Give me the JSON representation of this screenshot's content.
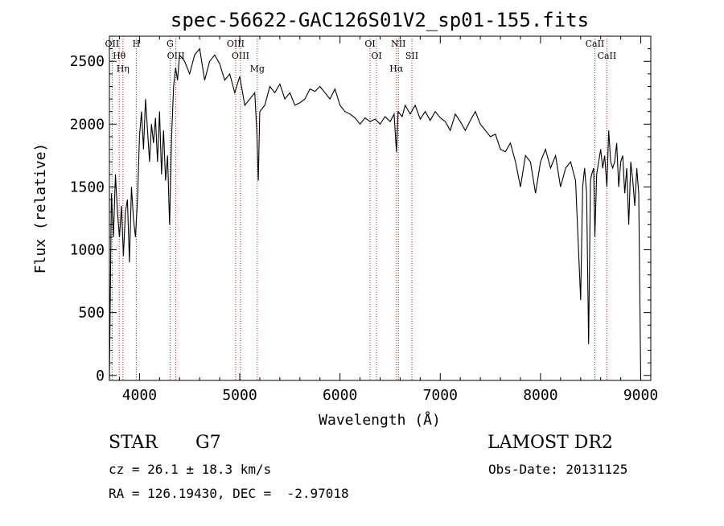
{
  "chart_data": {
    "type": "line",
    "title": "spec-56622-GAC126S01V2_sp01-155.fits",
    "xlabel": "Wavelength (Å)",
    "ylabel": "Flux (relative)",
    "xlim": [
      3700,
      9100
    ],
    "ylim": [
      -40,
      2700
    ],
    "xticks": [
      4000,
      5000,
      6000,
      7000,
      8000,
      9000
    ],
    "yticks": [
      0,
      500,
      1000,
      1500,
      2000,
      2500
    ],
    "grid": false,
    "series": [
      {
        "x": [
          3700,
          3720,
          3740,
          3760,
          3780,
          3800,
          3820,
          3840,
          3860,
          3880,
          3900,
          3920,
          3940,
          3960,
          3980,
          4000,
          4020,
          4040,
          4060,
          4080,
          4100,
          4120,
          4140,
          4160,
          4180,
          4200,
          4220,
          4240,
          4260,
          4280,
          4300,
          4320,
          4340,
          4360,
          4380,
          4400,
          4450,
          4500,
          4550,
          4600,
          4650,
          4700,
          4750,
          4800,
          4850,
          4900,
          4950,
          5000,
          5050,
          5100,
          5150,
          5170,
          5185,
          5200,
          5250,
          5300,
          5350,
          5400,
          5450,
          5500,
          5550,
          5600,
          5650,
          5700,
          5750,
          5800,
          5850,
          5900,
          5950,
          6000,
          6050,
          6100,
          6150,
          6200,
          6250,
          6300,
          6350,
          6400,
          6450,
          6500,
          6540,
          6563,
          6580,
          6620,
          6650,
          6700,
          6750,
          6800,
          6850,
          6900,
          6950,
          7000,
          7050,
          7100,
          7150,
          7200,
          7250,
          7300,
          7350,
          7400,
          7450,
          7500,
          7550,
          7600,
          7650,
          7700,
          7750,
          7800,
          7850,
          7900,
          7950,
          8000,
          8050,
          8100,
          8150,
          8200,
          8250,
          8300,
          8350,
          8400,
          8420,
          8440,
          8460,
          8480,
          8498,
          8510,
          8530,
          8542,
          8560,
          8580,
          8600,
          8620,
          8640,
          8662,
          8680,
          8700,
          8720,
          8740,
          8760,
          8780,
          8800,
          8820,
          8840,
          8860,
          8880,
          8900,
          8920,
          8940,
          8960,
          8980,
          9000
        ],
        "values": [
          -20,
          1450,
          1100,
          1600,
          1300,
          1100,
          1350,
          950,
          1300,
          1400,
          900,
          1500,
          1250,
          1100,
          1400,
          1900,
          2100,
          1800,
          2200,
          1950,
          1700,
          2000,
          1850,
          2050,
          1700,
          2100,
          1600,
          1950,
          1550,
          1750,
          1200,
          1900,
          2300,
          2450,
          2350,
          2550,
          2500,
          2400,
          2550,
          2600,
          2350,
          2500,
          2550,
          2480,
          2350,
          2400,
          2250,
          2380,
          2150,
          2200,
          2250,
          1950,
          1550,
          2100,
          2150,
          2300,
          2250,
          2320,
          2200,
          2250,
          2150,
          2170,
          2200,
          2280,
          2260,
          2300,
          2250,
          2200,
          2280,
          2150,
          2100,
          2080,
          2050,
          2000,
          2050,
          2020,
          2040,
          2000,
          2060,
          2020,
          2080,
          1780,
          2100,
          2060,
          2150,
          2080,
          2150,
          2040,
          2100,
          2030,
          2100,
          2050,
          2020,
          1950,
          2080,
          2020,
          1950,
          2030,
          2100,
          2000,
          1950,
          1900,
          1920,
          1800,
          1780,
          1850,
          1700,
          1500,
          1750,
          1700,
          1450,
          1700,
          1800,
          1650,
          1750,
          1500,
          1650,
          1700,
          1550,
          600,
          1500,
          1650,
          1450,
          250,
          1550,
          1600,
          1650,
          1100,
          1600,
          1700,
          1800,
          1650,
          1750,
          1500,
          1950,
          1700,
          1650,
          1700,
          1850,
          1500,
          1700,
          1750,
          1450,
          1650,
          1200,
          1700,
          1550,
          1350,
          1650,
          1450,
          -40
        ]
      }
    ],
    "lines": [
      {
        "label": "OII",
        "x": 3727
      },
      {
        "label": "Hθ",
        "x": 3798
      },
      {
        "label": "Hη",
        "x": 3835
      },
      {
        "label": "H",
        "x": 3968
      },
      {
        "label": "G",
        "x": 4305
      },
      {
        "label": "OIII",
        "x": 4363
      },
      {
        "label": "OIII",
        "x": 4959
      },
      {
        "label": "OIII",
        "x": 5007
      },
      {
        "label": "Mg",
        "x": 5175
      },
      {
        "label": "OI",
        "x": 6300
      },
      {
        "label": "OI",
        "x": 6364
      },
      {
        "label": "Hα",
        "x": 6563
      },
      {
        "label": "NII",
        "x": 6583
      },
      {
        "label": "SII",
        "x": 6717
      },
      {
        "label": "CaII",
        "x": 8542
      },
      {
        "label": "CaII",
        "x": 8662
      }
    ]
  },
  "info": {
    "object_class": "STAR",
    "subclass": "G7",
    "survey": "LAMOST DR2",
    "redshift": "cz = 26.1 ± 18.3 km/s",
    "obs_date": "Obs-Date: 20131125",
    "coords": "RA = 126.19430, DEC =  -2.97018"
  },
  "colors": {
    "spectrum": "#000000",
    "line_marker": "#b22222",
    "axes": "#000000",
    "background": "#ffffff"
  }
}
